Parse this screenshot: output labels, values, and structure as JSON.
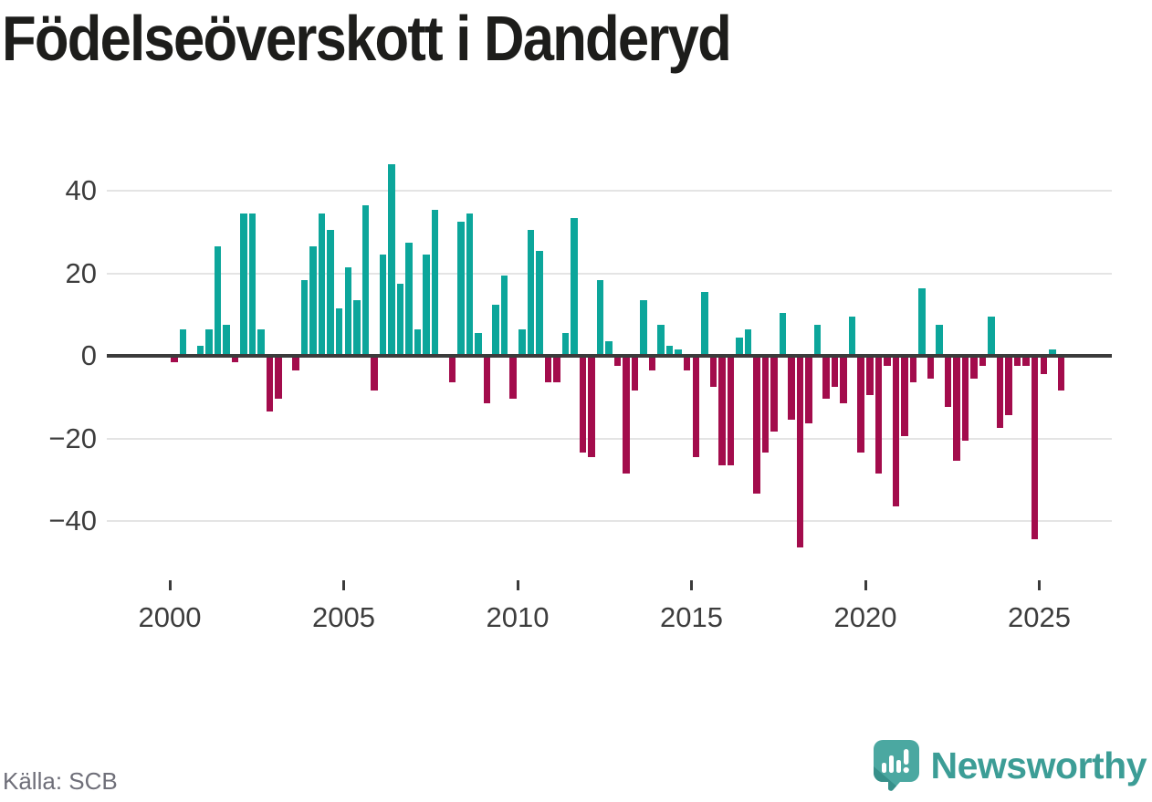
{
  "title": "Födelseöverskott i Danderyd",
  "source": "Källa: SCB",
  "brand": {
    "name": "Newsworthy"
  },
  "colors": {
    "positive_bar": "#0CA69B",
    "negative_bar": "#A30C4C",
    "zero_line": "#3b3b3b",
    "gridline": "#e4e4e4",
    "axis_text": "#3d3d3d",
    "title_text": "#1d1d1b",
    "source_text": "#6f6f79",
    "brand_teal": "#3c9d96",
    "logo_fill": "#4BA8A1",
    "logo_shade": "#37908A"
  },
  "chart_data": {
    "type": "bar",
    "title": "Födelseöverskott i Danderyd",
    "xlabel": "",
    "ylabel": "",
    "frequency": "quarterly",
    "start_year": 2000,
    "start_quarter": 1,
    "end_year": 2025,
    "end_quarter": 3,
    "y_ticks": [
      40,
      20,
      0,
      -20,
      -40
    ],
    "ylim": [
      -48,
      48
    ],
    "grid": "horizontal",
    "legend": "none",
    "x_tick_years": [
      2000,
      2005,
      2010,
      2015,
      2020,
      2025
    ],
    "x_tick_labels": [
      "2000",
      "2005",
      "2010",
      "2015",
      "2020",
      "2025"
    ],
    "values": [
      -1,
      6,
      0,
      2,
      6,
      26,
      7,
      -1,
      34,
      34,
      6,
      -13,
      -10,
      0,
      -3,
      18,
      26,
      34,
      30,
      11,
      21,
      13,
      36,
      -8,
      24,
      46,
      17,
      27,
      6,
      24,
      35,
      0,
      -6,
      32,
      34,
      5,
      -11,
      12,
      19,
      -10,
      6,
      30,
      25,
      -6,
      -6,
      5,
      33,
      -23,
      -24,
      18,
      3,
      -2,
      -28,
      -8,
      13,
      -3,
      7,
      2,
      1,
      -3,
      -24,
      15,
      -7,
      -26,
      -26,
      4,
      6,
      -33,
      -23,
      -18,
      10,
      -15,
      -46,
      -16,
      7,
      -10,
      -7,
      -11,
      9,
      -23,
      -9,
      -28,
      -2,
      -36,
      -19,
      -6,
      16,
      -5,
      7,
      -12,
      -25,
      -20,
      -5,
      -2,
      9,
      -17,
      -14,
      -2,
      -2,
      -44,
      -4,
      1,
      -8
    ]
  }
}
